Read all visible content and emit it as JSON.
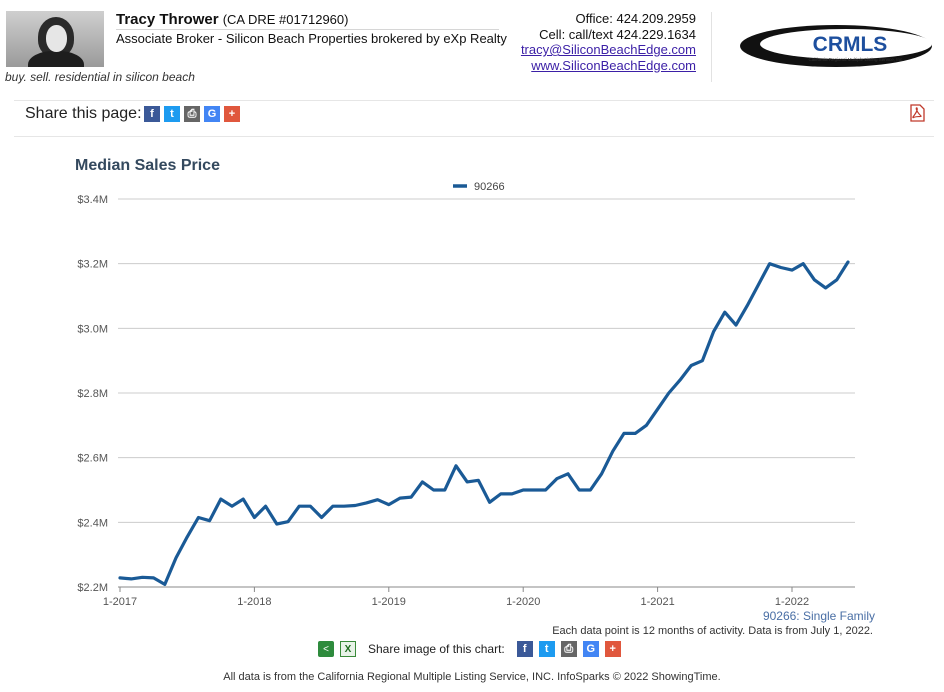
{
  "header": {
    "agent_name": "Tracy Thrower",
    "license": "(CA DRE #01712960)",
    "title": "Associate Broker - Silicon Beach Properties brokered by eXp Realty",
    "tagline": "buy. sell. residential in silicon beach",
    "office": "Office: 424.209.2959",
    "cell": "Cell: call/text 424.229.1634",
    "email": "tracy@SiliconBeachEdge.com",
    "website": "www.SiliconBeachEdge.com",
    "logo_text": "CRMLS",
    "logo_subtext": "California Regional Multiple Listing Service, Inc."
  },
  "share_bar": {
    "label": "Share this page:",
    "icons": [
      "facebook-icon",
      "twitter-icon",
      "print-icon",
      "google-icon",
      "plus-icon"
    ]
  },
  "colors": {
    "series": "#1a5a96",
    "title": "#34495e",
    "grid": "#cccccc"
  },
  "chart_data": {
    "type": "line",
    "title": "Median Sales Price",
    "ylim": [
      2.2,
      3.4
    ],
    "y_ticks": [
      "$2.2M",
      "$2.4M",
      "$2.6M",
      "$2.8M",
      "$3.0M",
      "$3.2M",
      "$3.4M"
    ],
    "x_ticks": [
      "1-2017",
      "1-2018",
      "1-2019",
      "1-2020",
      "1-2021",
      "1-2022"
    ],
    "grid": "horizontal",
    "legend_position": "top-center",
    "series": [
      {
        "name": "90266",
        "x": [
          "2017-01",
          "2017-02",
          "2017-03",
          "2017-04",
          "2017-05",
          "2017-06",
          "2017-07",
          "2017-08",
          "2017-09",
          "2017-10",
          "2017-11",
          "2017-12",
          "2018-01",
          "2018-02",
          "2018-03",
          "2018-04",
          "2018-05",
          "2018-06",
          "2018-07",
          "2018-08",
          "2018-09",
          "2018-10",
          "2018-11",
          "2018-12",
          "2019-01",
          "2019-02",
          "2019-03",
          "2019-04",
          "2019-05",
          "2019-06",
          "2019-07",
          "2019-08",
          "2019-09",
          "2019-10",
          "2019-11",
          "2019-12",
          "2020-01",
          "2020-02",
          "2020-03",
          "2020-04",
          "2020-05",
          "2020-06",
          "2020-07",
          "2020-08",
          "2020-09",
          "2020-10",
          "2020-11",
          "2020-12",
          "2021-01",
          "2021-02",
          "2021-03",
          "2021-04",
          "2021-05",
          "2021-06",
          "2021-07",
          "2021-08",
          "2021-09",
          "2021-10",
          "2021-11",
          "2021-12",
          "2022-01",
          "2022-02",
          "2022-03",
          "2022-04",
          "2022-05",
          "2022-06"
        ],
        "values": [
          2.228,
          2.225,
          2.23,
          2.228,
          2.208,
          2.29,
          2.355,
          2.415,
          2.405,
          2.472,
          2.45,
          2.472,
          2.415,
          2.45,
          2.395,
          2.402,
          2.45,
          2.45,
          2.415,
          2.45,
          2.45,
          2.452,
          2.46,
          2.47,
          2.455,
          2.475,
          2.478,
          2.525,
          2.5,
          2.5,
          2.575,
          2.525,
          2.53,
          2.462,
          2.488,
          2.488,
          2.5,
          2.5,
          2.5,
          2.535,
          2.55,
          2.5,
          2.5,
          2.55,
          2.62,
          2.675,
          2.675,
          2.7,
          2.75,
          2.8,
          2.84,
          2.885,
          2.9,
          2.99,
          3.05,
          3.01,
          3.07,
          3.135,
          3.2,
          3.188,
          3.18,
          3.2,
          3.15,
          3.125,
          3.15,
          3.205
        ]
      }
    ]
  },
  "chart_notes": {
    "series_label": "90266: Single Family",
    "data_note": "Each data point is 12 months of activity. Data is from July 1, 2022."
  },
  "image_share": {
    "label": "Share image of this chart:",
    "icons": [
      "facebook-icon",
      "twitter-icon",
      "print-icon",
      "google-icon",
      "plus-icon"
    ]
  },
  "footer": {
    "text": "All data is from the California Regional Multiple Listing Service, INC. InfoSparks © 2022 ShowingTime."
  }
}
